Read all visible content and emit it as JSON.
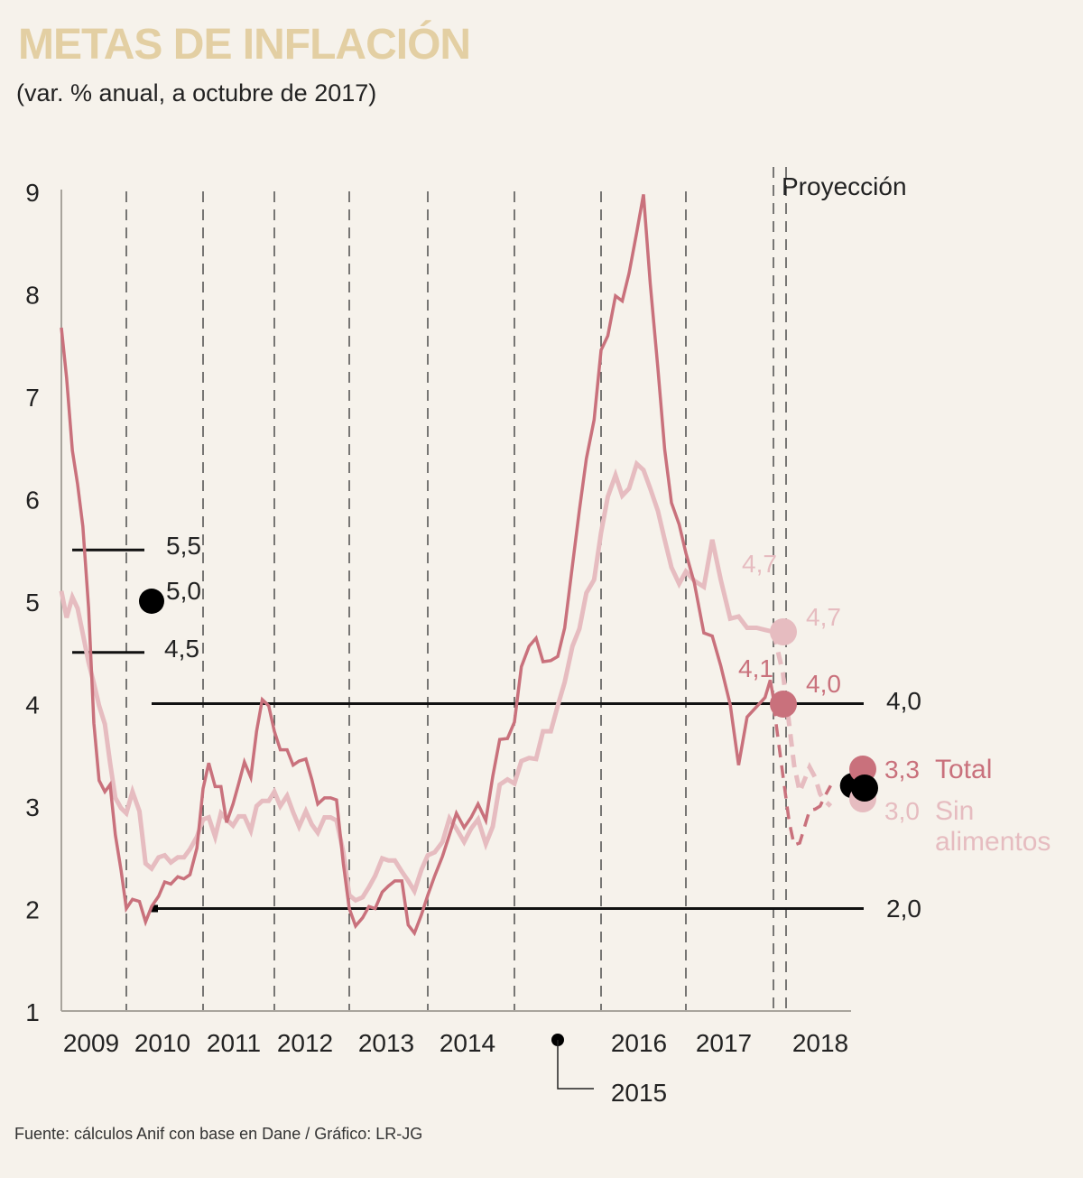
{
  "title": "METAS DE INFLACIÓN",
  "subtitle": "(var. % anual, a octubre de 2017)",
  "source": "Fuente: cálculos Anif con base en Dane / Gráfico: LR-JG",
  "colors": {
    "background": "#f6f2eb",
    "title": "#e3cfa3",
    "total": "#c9717c",
    "sin_alimentos": "#e6bcc0",
    "target": "#111111",
    "axis": "#a8a49c"
  },
  "chart_data": {
    "type": "line",
    "title": "METAS DE INFLACIÓN",
    "subtitle": "(var. % anual, a octubre de 2017)",
    "xlabel": "",
    "ylabel": "",
    "ylim": [
      1,
      9
    ],
    "xlim": [
      2009.0,
      2019.0
    ],
    "y_ticks": [
      "1",
      "2",
      "3",
      "4",
      "5",
      "6",
      "7",
      "8",
      "9"
    ],
    "x_ticks": [
      "2009",
      "2010",
      "2011",
      "2012",
      "2013",
      "2014",
      "2015",
      "2016",
      "2017",
      "2018"
    ],
    "grid": "vertical dashed year separators",
    "projection_label": "Proyección",
    "projection_start": 2017.83,
    "series": [
      {
        "name": "Total",
        "style": "solid",
        "points": [
          [
            2009.0,
            7.67
          ],
          [
            2009.08,
            7.18
          ],
          [
            2009.17,
            6.47
          ],
          [
            2009.25,
            6.14
          ],
          [
            2009.33,
            5.73
          ],
          [
            2009.42,
            4.93
          ],
          [
            2009.5,
            3.81
          ],
          [
            2009.58,
            3.25
          ],
          [
            2009.67,
            3.14
          ],
          [
            2009.75,
            3.21
          ],
          [
            2009.83,
            2.72
          ],
          [
            2009.92,
            2.37
          ],
          [
            2010.0,
            2.0
          ],
          [
            2010.08,
            2.09
          ],
          [
            2010.17,
            2.07
          ],
          [
            2010.25,
            1.87
          ],
          [
            2010.33,
            2.02
          ],
          [
            2010.42,
            2.12
          ],
          [
            2010.5,
            2.26
          ],
          [
            2010.58,
            2.24
          ],
          [
            2010.67,
            2.31
          ],
          [
            2010.75,
            2.29
          ],
          [
            2010.83,
            2.33
          ],
          [
            2010.92,
            2.59
          ],
          [
            2011.0,
            3.17
          ],
          [
            2011.08,
            3.42
          ],
          [
            2011.17,
            3.19
          ],
          [
            2011.25,
            3.19
          ],
          [
            2011.33,
            2.84
          ],
          [
            2011.42,
            3.02
          ],
          [
            2011.5,
            3.22
          ],
          [
            2011.58,
            3.43
          ],
          [
            2011.67,
            3.28
          ],
          [
            2011.75,
            3.73
          ],
          [
            2011.83,
            4.04
          ],
          [
            2011.92,
            3.98
          ],
          [
            2012.0,
            3.73
          ],
          [
            2012.08,
            3.55
          ],
          [
            2012.17,
            3.55
          ],
          [
            2012.25,
            3.4
          ],
          [
            2012.33,
            3.44
          ],
          [
            2012.42,
            3.46
          ],
          [
            2012.5,
            3.26
          ],
          [
            2012.58,
            3.02
          ],
          [
            2012.67,
            3.08
          ],
          [
            2012.75,
            3.08
          ],
          [
            2012.83,
            3.06
          ],
          [
            2012.92,
            2.44
          ],
          [
            2013.0,
            2.0
          ],
          [
            2013.08,
            1.83
          ],
          [
            2013.17,
            1.91
          ],
          [
            2013.25,
            2.02
          ],
          [
            2013.33,
            2.0
          ],
          [
            2013.42,
            2.16
          ],
          [
            2013.5,
            2.22
          ],
          [
            2013.58,
            2.27
          ],
          [
            2013.67,
            2.27
          ],
          [
            2013.75,
            1.84
          ],
          [
            2013.83,
            1.76
          ],
          [
            2013.92,
            1.94
          ],
          [
            2014.0,
            2.13
          ],
          [
            2014.08,
            2.32
          ],
          [
            2014.17,
            2.51
          ],
          [
            2014.25,
            2.72
          ],
          [
            2014.33,
            2.93
          ],
          [
            2014.42,
            2.79
          ],
          [
            2014.5,
            2.89
          ],
          [
            2014.58,
            3.02
          ],
          [
            2014.67,
            2.86
          ],
          [
            2014.75,
            3.29
          ],
          [
            2014.83,
            3.65
          ],
          [
            2014.92,
            3.66
          ],
          [
            2015.0,
            3.82
          ],
          [
            2015.08,
            4.36
          ],
          [
            2015.17,
            4.56
          ],
          [
            2015.25,
            4.64
          ],
          [
            2015.33,
            4.41
          ],
          [
            2015.42,
            4.42
          ],
          [
            2015.5,
            4.46
          ],
          [
            2015.58,
            4.74
          ],
          [
            2015.67,
            5.35
          ],
          [
            2015.75,
            5.89
          ],
          [
            2015.83,
            6.39
          ],
          [
            2015.92,
            6.77
          ],
          [
            2016.0,
            7.45
          ],
          [
            2016.08,
            7.59
          ],
          [
            2016.17,
            7.98
          ],
          [
            2016.25,
            7.93
          ],
          [
            2016.33,
            8.2
          ],
          [
            2016.42,
            8.6
          ],
          [
            2016.5,
            8.97
          ],
          [
            2016.58,
            8.1
          ],
          [
            2016.67,
            7.27
          ],
          [
            2016.75,
            6.48
          ],
          [
            2016.83,
            5.96
          ],
          [
            2016.92,
            5.75
          ],
          [
            2017.0,
            5.47
          ],
          [
            2017.08,
            5.18
          ],
          [
            2017.17,
            4.69
          ],
          [
            2017.25,
            4.66
          ],
          [
            2017.33,
            4.37
          ],
          [
            2017.42,
            3.99
          ],
          [
            2017.5,
            3.4
          ],
          [
            2017.58,
            3.87
          ],
          [
            2017.67,
            3.97
          ],
          [
            2017.75,
            4.06
          ],
          [
            2017.8,
            4.23
          ],
          [
            2017.83,
            4.05
          ]
        ]
      },
      {
        "name": "Total (proyección)",
        "style": "dashed",
        "points": [
          [
            2017.83,
            4.0
          ],
          [
            2017.92,
            3.3
          ],
          [
            2018.0,
            2.85
          ],
          [
            2018.08,
            2.62
          ],
          [
            2018.17,
            2.64
          ],
          [
            2018.25,
            2.8
          ],
          [
            2018.33,
            2.96
          ],
          [
            2018.42,
            2.97
          ],
          [
            2018.5,
            3.0
          ],
          [
            2018.58,
            3.1
          ],
          [
            2018.67,
            3.2
          ]
        ]
      },
      {
        "name": "Sin alimentos",
        "style": "solid",
        "points": [
          [
            2009.0,
            5.1
          ],
          [
            2009.08,
            4.84
          ],
          [
            2009.17,
            5.04
          ],
          [
            2009.25,
            4.93
          ],
          [
            2009.33,
            4.68
          ],
          [
            2009.42,
            4.4
          ],
          [
            2009.5,
            4.2
          ],
          [
            2009.58,
            3.98
          ],
          [
            2009.67,
            3.8
          ],
          [
            2009.75,
            3.42
          ],
          [
            2009.83,
            3.08
          ],
          [
            2009.92,
            2.98
          ],
          [
            2010.0,
            2.93
          ],
          [
            2010.08,
            3.14
          ],
          [
            2010.17,
            2.95
          ],
          [
            2010.25,
            2.44
          ],
          [
            2010.33,
            2.39
          ],
          [
            2010.42,
            2.5
          ],
          [
            2010.5,
            2.52
          ],
          [
            2010.58,
            2.45
          ],
          [
            2010.67,
            2.5
          ],
          [
            2010.75,
            2.5
          ],
          [
            2010.83,
            2.58
          ],
          [
            2010.92,
            2.7
          ],
          [
            2011.0,
            2.87
          ],
          [
            2011.08,
            2.89
          ],
          [
            2011.17,
            2.7
          ],
          [
            2011.25,
            2.93
          ],
          [
            2011.33,
            2.87
          ],
          [
            2011.42,
            2.81
          ],
          [
            2011.5,
            2.9
          ],
          [
            2011.58,
            2.9
          ],
          [
            2011.67,
            2.76
          ],
          [
            2011.75,
            3.0
          ],
          [
            2011.83,
            3.05
          ],
          [
            2011.92,
            3.05
          ],
          [
            2012.0,
            3.14
          ],
          [
            2012.08,
            3.0
          ],
          [
            2012.17,
            3.1
          ],
          [
            2012.25,
            2.94
          ],
          [
            2012.33,
            2.8
          ],
          [
            2012.42,
            2.95
          ],
          [
            2012.5,
            2.82
          ],
          [
            2012.58,
            2.74
          ],
          [
            2012.67,
            2.89
          ],
          [
            2012.75,
            2.89
          ],
          [
            2012.83,
            2.86
          ],
          [
            2012.92,
            2.55
          ],
          [
            2013.0,
            2.13
          ],
          [
            2013.08,
            2.08
          ],
          [
            2013.17,
            2.11
          ],
          [
            2013.25,
            2.21
          ],
          [
            2013.33,
            2.32
          ],
          [
            2013.42,
            2.49
          ],
          [
            2013.5,
            2.47
          ],
          [
            2013.58,
            2.47
          ],
          [
            2013.67,
            2.36
          ],
          [
            2013.75,
            2.27
          ],
          [
            2013.83,
            2.17
          ],
          [
            2013.92,
            2.38
          ],
          [
            2014.0,
            2.52
          ],
          [
            2014.08,
            2.55
          ],
          [
            2014.17,
            2.65
          ],
          [
            2014.25,
            2.88
          ],
          [
            2014.33,
            2.78
          ],
          [
            2014.42,
            2.65
          ],
          [
            2014.5,
            2.78
          ],
          [
            2014.58,
            2.87
          ],
          [
            2014.67,
            2.63
          ],
          [
            2014.75,
            2.8
          ],
          [
            2014.83,
            3.21
          ],
          [
            2014.92,
            3.26
          ],
          [
            2015.0,
            3.22
          ],
          [
            2015.08,
            3.44
          ],
          [
            2015.17,
            3.47
          ],
          [
            2015.25,
            3.46
          ],
          [
            2015.33,
            3.73
          ],
          [
            2015.42,
            3.73
          ],
          [
            2015.5,
            3.98
          ],
          [
            2015.58,
            4.21
          ],
          [
            2015.67,
            4.56
          ],
          [
            2015.75,
            4.73
          ],
          [
            2015.83,
            5.08
          ],
          [
            2015.92,
            5.21
          ],
          [
            2016.0,
            5.67
          ],
          [
            2016.08,
            6.02
          ],
          [
            2016.17,
            6.23
          ],
          [
            2016.25,
            6.03
          ],
          [
            2016.33,
            6.1
          ],
          [
            2016.42,
            6.34
          ],
          [
            2016.5,
            6.28
          ],
          [
            2016.58,
            6.1
          ],
          [
            2016.67,
            5.88
          ],
          [
            2016.75,
            5.6
          ],
          [
            2016.83,
            5.33
          ],
          [
            2016.92,
            5.17
          ],
          [
            2017.0,
            5.29
          ],
          [
            2017.08,
            5.2
          ],
          [
            2017.17,
            5.14
          ],
          [
            2017.25,
            5.6
          ],
          [
            2017.33,
            5.21
          ],
          [
            2017.42,
            4.83
          ],
          [
            2017.5,
            4.85
          ],
          [
            2017.58,
            4.74
          ],
          [
            2017.67,
            4.74
          ],
          [
            2017.75,
            4.72
          ],
          [
            2017.83,
            4.7
          ]
        ]
      },
      {
        "name": "Sin alimentos (proyección)",
        "style": "dashed",
        "points": [
          [
            2017.83,
            4.7
          ],
          [
            2017.92,
            4.3
          ],
          [
            2018.0,
            3.8
          ],
          [
            2018.08,
            3.4
          ],
          [
            2018.17,
            3.14
          ],
          [
            2018.25,
            3.26
          ],
          [
            2018.33,
            3.38
          ],
          [
            2018.42,
            3.28
          ],
          [
            2018.5,
            3.12
          ],
          [
            2018.58,
            3.05
          ],
          [
            2018.67,
            3.0
          ]
        ]
      }
    ],
    "targets": [
      {
        "label": "5,5",
        "value": 5.5,
        "x_from": 2009.12,
        "x_to": 2009.95,
        "type": "range-upper"
      },
      {
        "label": "5,0",
        "value": 5.0,
        "x": 2010.3,
        "type": "point"
      },
      {
        "label": "4,5",
        "value": 4.5,
        "x_from": 2009.12,
        "x_to": 2009.95,
        "type": "range-lower"
      },
      {
        "label": "4,0",
        "value": 4.0,
        "x_from": 2010.3,
        "x_to": 2018.7,
        "type": "range-upper"
      },
      {
        "label": "2,0",
        "value": 2.0,
        "x_from": 2010.3,
        "x_to": 2018.7,
        "type": "range-lower"
      },
      {
        "label": "",
        "value": 3.2,
        "x": 2018.85,
        "type": "point"
      }
    ],
    "annotations": [
      {
        "text": "4,7",
        "series": "Sin alimentos",
        "x": 2017.62,
        "value": 4.7
      },
      {
        "text": "4,1",
        "series": "Total",
        "x": 2017.62,
        "value": 4.1
      },
      {
        "text": "4,7",
        "series": "Sin alimentos",
        "x": 2017.83,
        "value": 4.7,
        "marker": true
      },
      {
        "text": "4,0",
        "series": "Total",
        "x": 2017.83,
        "value": 4.0,
        "marker": true
      },
      {
        "text": "3,3",
        "series": "Total",
        "x": 2018.85,
        "value": 3.3,
        "marker": true
      },
      {
        "text": "3,0",
        "series": "Sin alimentos",
        "x": 2018.85,
        "value": 3.0,
        "marker": true
      }
    ],
    "legend": [
      {
        "name": "Total",
        "color": "#c9717c"
      },
      {
        "name": "Sin alimentos",
        "color": "#e6bcc0"
      }
    ],
    "legend_placement": "right",
    "callout": {
      "label": "2015",
      "note": "leader line to 2015 tick"
    }
  }
}
